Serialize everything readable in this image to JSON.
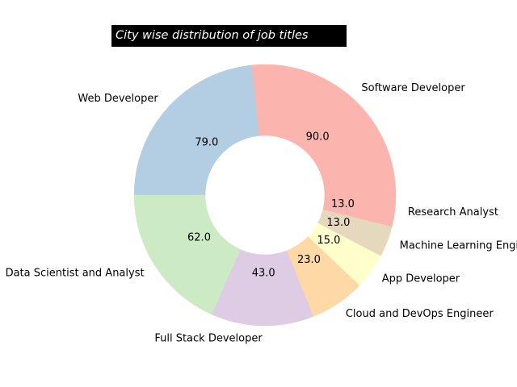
{
  "chart_data": {
    "type": "pie",
    "title": "City wise distribution of job titles",
    "donut": true,
    "start_angle_deg": 0,
    "direction": "counterclockwise",
    "categories": [
      "Software Developer",
      "Web Developer",
      "Data Scientist and Analyst",
      "Full Stack Developer",
      "Cloud and DevOps Engineer",
      "App Developer",
      "Machine Learning Engineer",
      "Research Analyst"
    ],
    "values": [
      90.0,
      79.0,
      62.0,
      43.0,
      23.0,
      15.0,
      13.0,
      13.0
    ],
    "value_labels": [
      "90.0",
      "79.0",
      "62.0",
      "43.0",
      "23.0",
      "15.0",
      "13.0",
      "13.0"
    ],
    "colors": [
      "#fbb4ae",
      "#b3cde3",
      "#ccebc5",
      "#decbe4",
      "#fed9a6",
      "#ffffcc",
      "#e5d8bd",
      "#fbb4ae"
    ]
  }
}
